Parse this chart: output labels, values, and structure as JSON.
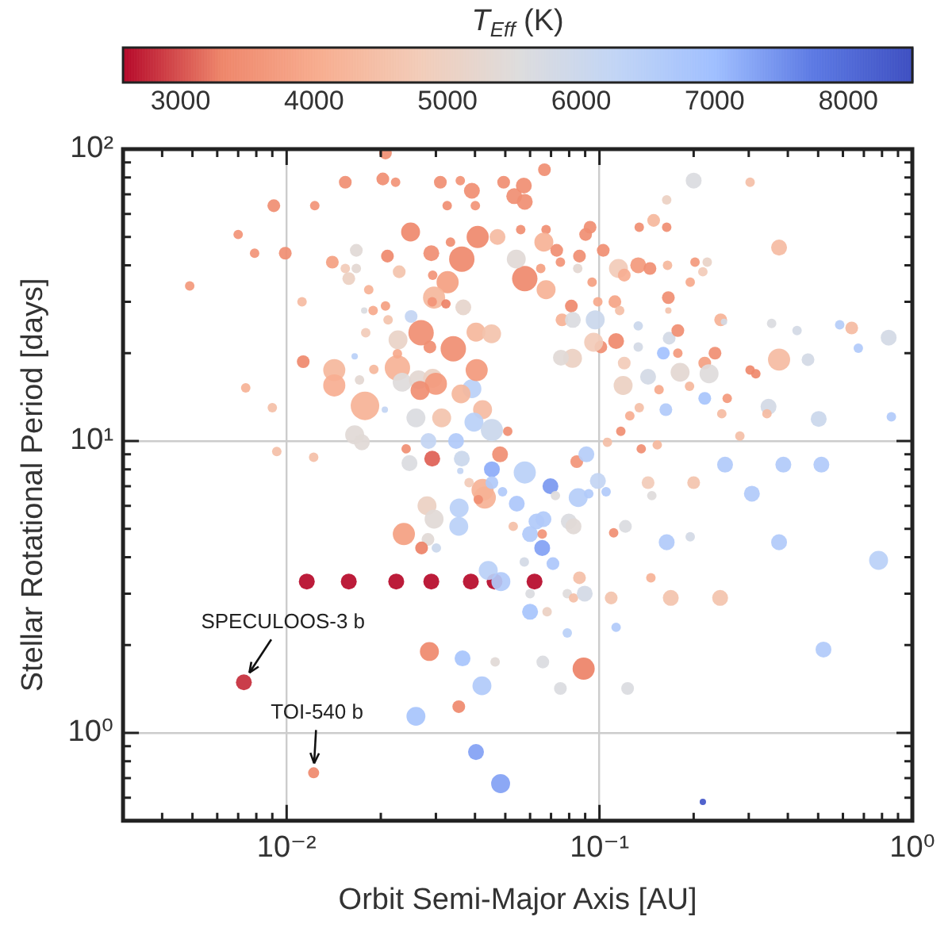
{
  "chart_data": {
    "type": "bubble",
    "xlabel": "Orbit Semi-Major Axis [AU]",
    "ylabel": "Stellar Rotational Period [days]",
    "clabel": "T$_{Eff}$ (K)",
    "log": "xy",
    "grid": true,
    "legend": false,
    "marker": "circle",
    "xlim": [
      0.003,
      1
    ],
    "ylim": [
      0.5,
      100
    ],
    "clim": [
      2570,
      8480
    ],
    "xticks": [
      {
        "value": 0.003,
        "label": null
      },
      {
        "value": 0.004,
        "label": null
      },
      {
        "value": 0.005,
        "label": null
      },
      {
        "value": 0.006,
        "label": null
      },
      {
        "value": 0.007,
        "label": null
      },
      {
        "value": 0.008,
        "label": null
      },
      {
        "value": 0.009,
        "label": null
      },
      {
        "value": 0.01,
        "label": "10⁻²"
      },
      {
        "value": 0.02,
        "label": null
      },
      {
        "value": 0.03,
        "label": null
      },
      {
        "value": 0.04,
        "label": null
      },
      {
        "value": 0.05,
        "label": null
      },
      {
        "value": 0.06,
        "label": null
      },
      {
        "value": 0.07,
        "label": null
      },
      {
        "value": 0.08,
        "label": null
      },
      {
        "value": 0.09,
        "label": null
      },
      {
        "value": 0.1,
        "label": "10⁻¹"
      },
      {
        "value": 0.2,
        "label": null
      },
      {
        "value": 0.3,
        "label": null
      },
      {
        "value": 0.4,
        "label": null
      },
      {
        "value": 0.5,
        "label": null
      },
      {
        "value": 0.6,
        "label": null
      },
      {
        "value": 0.7,
        "label": null
      },
      {
        "value": 0.8,
        "label": null
      },
      {
        "value": 0.9,
        "label": null
      },
      {
        "value": 1,
        "label": "10⁰"
      }
    ],
    "yticks": [
      {
        "value": 0.5,
        "label": null
      },
      {
        "value": 0.6,
        "label": null
      },
      {
        "value": 0.7,
        "label": null
      },
      {
        "value": 0.8,
        "label": null
      },
      {
        "value": 0.9,
        "label": null
      },
      {
        "value": 1,
        "label": "10⁰"
      },
      {
        "value": 2,
        "label": null
      },
      {
        "value": 3,
        "label": null
      },
      {
        "value": 4,
        "label": null
      },
      {
        "value": 5,
        "label": null
      },
      {
        "value": 6,
        "label": null
      },
      {
        "value": 7,
        "label": null
      },
      {
        "value": 8,
        "label": null
      },
      {
        "value": 9,
        "label": null
      },
      {
        "value": 10,
        "label": "10¹"
      },
      {
        "value": 20,
        "label": null
      },
      {
        "value": 30,
        "label": null
      },
      {
        "value": 40,
        "label": null
      },
      {
        "value": 50,
        "label": null
      },
      {
        "value": 60,
        "label": null
      },
      {
        "value": 70,
        "label": null
      },
      {
        "value": 80,
        "label": null
      },
      {
        "value": 90,
        "label": null
      },
      {
        "value": 100,
        "label": "10²"
      }
    ],
    "cticks": [
      3000,
      4000,
      5000,
      6000,
      7000,
      8000
    ],
    "x": [
      0.0116,
      0.0158,
      0.0224,
      0.029,
      0.0388,
      0.0462,
      0.062,
      0.0073,
      0.0122,
      0.0049,
      0.007,
      0.0079,
      0.0091,
      0.0099,
      0.0123,
      0.0154,
      0.0203,
      0.0223,
      0.0207,
      0.031,
      0.0359,
      0.0391,
      0.0494,
      0.0326,
      0.0401,
      0.0249,
      0.0408,
      0.0472,
      0.0334,
      0.029,
      0.0363,
      0.021,
      0.0167,
      0.0167,
      0.0154,
      0.0158,
      0.014,
      0.0229,
      0.0293,
      0.0327,
      0.0183,
      0.0112,
      0.0207,
      0.0189,
      0.0211,
      0.0177,
      0.0179,
      0.025,
      0.0296,
      0.0292,
      0.0323,
      0.0367,
      0.0269,
      0.0227,
      0.0287,
      0.0341,
      0.0403,
      0.0452,
      0.0113,
      0.0142,
      0.0142,
      0.0165,
      0.0171,
      0.019,
      0.0226,
      0.0226,
      0.0074,
      0.009,
      0.0178,
      0.0206,
      0.0234,
      0.0264,
      0.0293,
      0.03,
      0.0267,
      0.0391,
      0.0405,
      0.0259,
      0.0313,
      0.0423,
      0.0397,
      0.0361,
      0.0165,
      0.0174,
      0.0093,
      0.0122,
      0.0241,
      0.0292,
      0.0284,
      0.0348,
      0.0363,
      0.0247,
      0.0453,
      0.0481,
      0.0359,
      0.0423,
      0.0453,
      0.0509,
      0.0281,
      0.0296,
      0.0237,
      0.0283,
      0.027,
      0.0301,
      0.043,
      0.041,
      0.0356,
      0.0355,
      0.0383,
      0.0453,
      0.049,
      0.053,
      0.0441,
      0.0484,
      0.0286,
      0.0365,
      0.0464,
      0.0421,
      0.0355,
      0.0259,
      0.0403,
      0.0483,
      0.0577,
      0.0697,
      0.0723,
      0.0855,
      0.0924,
      0.0988,
      0.105,
      0.0544,
      0.0629,
      0.0662,
      0.0798,
      0.0826,
      0.06,
      0.0656,
      0.0656,
      0.071,
      0.0575,
      0.06,
      0.06,
      0.068,
      0.0789,
      0.0863,
      0.0826,
      0.0897,
      0.0789,
      0.0659,
      0.089,
      0.075,
      0.111,
      0.121,
      0.109,
      0.113,
      0.123,
      0.143,
      0.147,
      0.164,
      0.195,
      0.2,
      0.146,
      0.169,
      0.243,
      0.307,
      0.375,
      0.52,
      0.78,
      0.214,
      0.252,
      0.387,
      0.512,
      0.0846,
      0.0908,
      0.136,
      0.153,
      0.0667,
      0.0573,
      0.0534,
      0.0577,
      0.056,
      0.0675,
      0.0933,
      0.0903,
      0.0664,
      0.073,
      0.0863,
      0.075,
      0.1028,
      0.0577,
      0.0675,
      0.0542,
      0.0649,
      0.0852,
      0.0947,
      0.115,
      0.12,
      0.133,
      0.145,
      0.134,
      0.164,
      0.149,
      0.164,
      0.2,
      0.303,
      0.375,
      0.202,
      0.221,
      0.214,
      0.165,
      0.195,
      0.0813,
      0.0759,
      0.0822,
      0.0969,
      0.0988,
      0.112,
      0.116,
      0.166,
      0.166,
      0.101,
      0.113,
      0.0958,
      0.082,
      0.0753,
      0.12,
      0.133,
      0.167,
      0.178,
      0.178,
      0.16,
      0.133,
      0.119,
      0.143,
      0.181,
      0.155,
      0.194,
      0.217,
      0.234,
      0.224,
      0.244,
      0.25,
      0.217,
      0.256,
      0.303,
      0.316,
      0.375,
      0.355,
      0.428,
      0.464,
      0.586,
      0.64,
      0.672,
      0.84,
      0.347,
      0.343,
      0.246,
      0.163,
      0.134,
      0.125,
      0.117,
      0.106,
      0.281,
      0.502,
      0.857
    ],
    "values": [
      3.3,
      3.3,
      3.3,
      3.3,
      3.3,
      3.3,
      3.3,
      1.49,
      0.73,
      34,
      51,
      44,
      64,
      44,
      64,
      77,
      79,
      77,
      97,
      77,
      78,
      72,
      77,
      64,
      64,
      52,
      50,
      50,
      48,
      44,
      42,
      43,
      45,
      39,
      39,
      36,
      41,
      38,
      37,
      35,
      33,
      30,
      29,
      28,
      26,
      28,
      23.5,
      26.7,
      31,
      30,
      29.5,
      28.7,
      23.5,
      22.2,
      21,
      20.7,
      23.6,
      23.3,
      18.7,
      17.5,
      15.5,
      19.5,
      16.2,
      17.6,
      17.8,
      19.9,
      15.2,
      13,
      13.2,
      12.8,
      15.9,
      16.2,
      16.4,
      15.7,
      14.9,
      15.1,
      17.5,
      12,
      12,
      12.8,
      11.6,
      14.5,
      10.5,
      9.9,
      9.2,
      8.8,
      9.4,
      8.7,
      10,
      10,
      8.7,
      8.4,
      8,
      9,
      7.9,
      6.8,
      10.9,
      10.8,
      6,
      5.4,
      4.8,
      4.6,
      4.3,
      4.3,
      6.4,
      6.3,
      5.9,
      5.1,
      7.2,
      7.2,
      6.7,
      5.1,
      3.6,
      3.3,
      1.9,
      1.8,
      1.75,
      1.45,
      1.23,
      1.14,
      0.86,
      0.67,
      7.8,
      7,
      6.5,
      6.4,
      6.6,
      7.3,
      6.7,
      6.1,
      5.3,
      5.4,
      5.3,
      5.1,
      4.8,
      4.8,
      4.3,
      3.8,
      3.85,
      3,
      2.6,
      2.6,
      3,
      3.4,
      2.9,
      3,
      2.2,
      1.75,
      1.66,
      1.42,
      4.85,
      5.1,
      2.9,
      2.3,
      1.42,
      7.2,
      6.5,
      4.5,
      4.7,
      7.2,
      3.4,
      2.9,
      2.9,
      6.6,
      4.5,
      1.93,
      3.9,
      0.58,
      8.3,
      8.3,
      8.3,
      8.5,
      9,
      9.4,
      9.7,
      85,
      75,
      69,
      66,
      53,
      53,
      54,
      51,
      48,
      45,
      43,
      41,
      45,
      36,
      33,
      42,
      39,
      39,
      35,
      39,
      37,
      40,
      39,
      54,
      54,
      57,
      67,
      78,
      77,
      46,
      41,
      41,
      38,
      40,
      35,
      29,
      26,
      26,
      26,
      30,
      30,
      28,
      31,
      28,
      21,
      22,
      21.8,
      19.2,
      19.3,
      18.5,
      24.8,
      22.5,
      23.9,
      20,
      20,
      21,
      15.5,
      16.6,
      17.2,
      15,
      15.4,
      18.5,
      20,
      17,
      26,
      25.6,
      14,
      14,
      17.5,
      17,
      19,
      25.3,
      23.9,
      19,
      25,
      24.4,
      20.8,
      22.6,
      13.1,
      12.4,
      12.4,
      12.8,
      13,
      12.2,
      10.8,
      9.9,
      10.4,
      11.9,
      12.1
    ],
    "sizes": [
      0.31,
      0.31,
      0.31,
      0.31,
      0.31,
      0.31,
      0.31,
      0.31,
      0.15,
      0.11,
      0.11,
      0.11,
      0.2,
      0.2,
      0.11,
      0.2,
      0.2,
      0.11,
      0.2,
      0.2,
      0.11,
      0.31,
      0.2,
      0.11,
      0.11,
      0.44,
      0.6,
      0.31,
      0.11,
      0.31,
      0.79,
      0.2,
      0.2,
      0.11,
      0.11,
      0.2,
      0.2,
      0.2,
      0.11,
      0.6,
      0.11,
      0.11,
      0.11,
      0.11,
      0.11,
      0.05,
      0.11,
      0.2,
      0.6,
      0.11,
      0.11,
      0.31,
      0.79,
      0.44,
      0.2,
      0.79,
      0.44,
      0.44,
      0.2,
      0.6,
      0.6,
      0.05,
      0.11,
      0.11,
      0.79,
      0.11,
      0.11,
      0.11,
      1,
      0.05,
      0.44,
      0.44,
      0.44,
      0.6,
      0.44,
      0.44,
      0.6,
      0.44,
      0.44,
      0.44,
      0.44,
      0.44,
      0.44,
      0.31,
      0.11,
      0.11,
      0.11,
      0.31,
      0.31,
      0.31,
      0.31,
      0.31,
      0.31,
      0.31,
      0.05,
      0.6,
      0.6,
      0.11,
      0.44,
      0.44,
      0.6,
      0.2,
      0.2,
      0.11,
      0.6,
      0.11,
      0.44,
      0.44,
      0.11,
      0.2,
      0.11,
      0.11,
      0.44,
      0.44,
      0.44,
      0.31,
      0.11,
      0.44,
      0.2,
      0.44,
      0.31,
      0.44,
      0.6,
      0.31,
      0.11,
      0.44,
      0.11,
      0.31,
      0.11,
      0.31,
      0.31,
      0.31,
      0.31,
      0.31,
      0.31,
      0.11,
      0.31,
      0.2,
      0.11,
      0.11,
      0.31,
      0.11,
      0.11,
      0.2,
      0.11,
      0.31,
      0.11,
      0.2,
      0.6,
      0.2,
      0.11,
      0.2,
      0.2,
      0.11,
      0.2,
      0.2,
      0.11,
      0.31,
      0.11,
      0.2,
      0.11,
      0.31,
      0.31,
      0.31,
      0.31,
      0.31,
      0.44,
      0.05,
      0.31,
      0.31,
      0.31,
      0.2,
      0.31,
      0.11,
      0.11,
      0.2,
      0.31,
      0.31,
      0.31,
      0.11,
      0.11,
      0.2,
      0.2,
      0.44,
      0.2,
      0.2,
      0.11,
      0.2,
      0.79,
      0.44,
      0.44,
      0.11,
      0.11,
      0.11,
      0.44,
      0.2,
      0.31,
      0.2,
      0.11,
      0.11,
      0.2,
      0.11,
      0.31,
      0.11,
      0.31,
      0.11,
      0.11,
      0.11,
      0.11,
      0.11,
      0.2,
      0.2,
      0.31,
      0.44,
      0.11,
      0.2,
      0.11,
      0.2,
      0.05,
      0.2,
      0.31,
      0.44,
      0.44,
      0.31,
      0.2,
      0.11,
      0.2,
      0.2,
      0.11,
      0.2,
      0.11,
      0.44,
      0.31,
      0.44,
      0.11,
      0.11,
      0.2,
      0.2,
      0.44,
      0.2,
      0.05,
      0.2,
      0.11,
      0.11,
      0.11,
      0.6,
      0.11,
      0.11,
      0.2,
      0.11,
      0.2,
      0.11,
      0.31,
      0.31,
      0.11,
      0.11,
      0.2,
      0.11,
      0.11,
      0.11,
      0.11,
      0.11,
      0.31,
      0.11
    ],
    "cvalues": [
      2600,
      2600,
      2600,
      2600,
      2600,
      2600,
      2600,
      2800,
      3400,
      3700,
      3600,
      3600,
      3500,
      3500,
      3600,
      3500,
      3500,
      3600,
      3500,
      3500,
      3600,
      3500,
      3500,
      3500,
      3600,
      3400,
      3400,
      4400,
      3500,
      3500,
      3400,
      3400,
      5400,
      5300,
      4800,
      5000,
      3800,
      4600,
      3600,
      3800,
      4200,
      4400,
      3800,
      4000,
      4600,
      5600,
      4800,
      6200,
      4300,
      3600,
      3300,
      5200,
      3500,
      5100,
      3500,
      3500,
      4300,
      4600,
      3400,
      4300,
      4100,
      6400,
      5300,
      4300,
      4200,
      4000,
      4200,
      4500,
      4200,
      6200,
      5500,
      5300,
      5000,
      3700,
      3500,
      6400,
      3700,
      5600,
      4600,
      4400,
      6400,
      4300,
      5400,
      5400,
      4500,
      4500,
      3500,
      3100,
      6200,
      6600,
      6000,
      5600,
      7200,
      3500,
      6200,
      4200,
      6000,
      3500,
      5000,
      5400,
      3800,
      5400,
      3300,
      6000,
      4200,
      3500,
      6400,
      6400,
      4800,
      6600,
      6600,
      4500,
      6400,
      6600,
      3400,
      6800,
      5400,
      6600,
      3400,
      6800,
      7300,
      7300,
      6400,
      7400,
      5500,
      6500,
      6600,
      6200,
      6600,
      6700,
      6600,
      6600,
      5600,
      5400,
      6600,
      3600,
      7300,
      6700,
      5800,
      5600,
      6800,
      5000,
      5500,
      4500,
      4500,
      5800,
      6400,
      5600,
      3300,
      5600,
      3500,
      5600,
      4600,
      6600,
      5600,
      4800,
      5500,
      6600,
      5800,
      4600,
      4200,
      4600,
      4600,
      6600,
      6600,
      6600,
      6400,
      8300,
      6600,
      6600,
      6600,
      3600,
      6500,
      3500,
      4300,
      3500,
      3500,
      3500,
      3500,
      3500,
      3500,
      3500,
      3500,
      4200,
      3500,
      3500,
      3600,
      3500,
      3400,
      4200,
      5400,
      3800,
      5300,
      3800,
      4800,
      4100,
      3700,
      3500,
      3500,
      3500,
      4300,
      5000,
      5600,
      4500,
      4400,
      3700,
      5100,
      4800,
      4300,
      4000,
      3400,
      4200,
      5600,
      6000,
      4000,
      3900,
      4500,
      3500,
      4600,
      3500,
      3400,
      4800,
      5000,
      5400,
      4800,
      6000,
      5800,
      3500,
      3700,
      6900,
      5800,
      5000,
      5800,
      5300,
      4000,
      4300,
      3800,
      3500,
      5500,
      4200,
      5800,
      6800,
      3700,
      3400,
      3400,
      4400,
      5600,
      5800,
      5800,
      6500,
      4400,
      6600,
      5800,
      5800,
      4400,
      4400,
      6600,
      4500,
      4100,
      3500,
      4500,
      4500,
      6000,
      6600
    ],
    "annotations": [
      {
        "text": "SPECULOOS-3 b",
        "x": 0.0073,
        "y": 1.49
      },
      {
        "text": "TOI-540 b",
        "x": 0.0122,
        "y": 0.73
      }
    ]
  }
}
